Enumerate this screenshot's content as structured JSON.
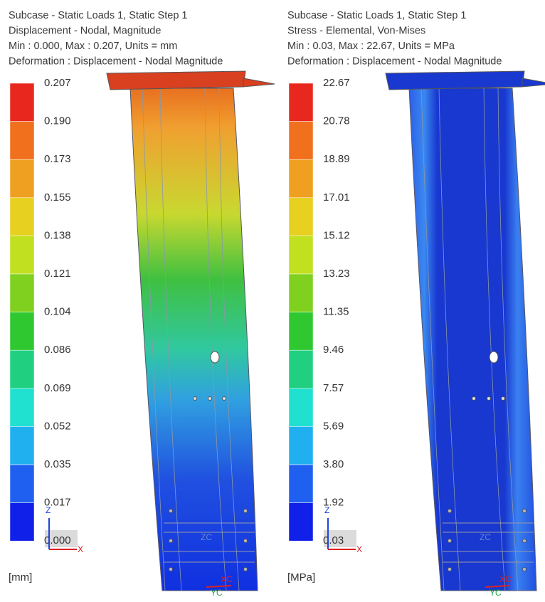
{
  "panels": [
    {
      "header": [
        "Subcase - Static Loads 1, Static Step 1",
        "Displacement - Nodal, Magnitude",
        "Min : 0.000, Max : 0.207, Units = mm",
        "Deformation : Displacement - Nodal Magnitude"
      ],
      "legend": [
        "0.207",
        "0.190",
        "0.173",
        "0.155",
        "0.138",
        "0.121",
        "0.104",
        "0.086",
        "0.069",
        "0.052",
        "0.035",
        "0.017",
        "0.000"
      ],
      "unit": "[mm]",
      "triad": {
        "z": "Z",
        "x": "X"
      },
      "csys": {
        "zc": "ZC",
        "xc": "XC",
        "yc": "YC"
      }
    },
    {
      "header": [
        "Subcase - Static Loads 1, Static Step 1",
        "Stress - Elemental, Von-Mises",
        "Min : 0.03, Max : 22.67, Units = MPa",
        "Deformation : Displacement - Nodal Magnitude"
      ],
      "legend": [
        "22.67",
        "20.78",
        "18.89",
        "17.01",
        "15.12",
        "13.23",
        "11.35",
        "9.46",
        "7.57",
        "5.69",
        "3.80",
        "1.92",
        "0.03"
      ],
      "unit": "[MPa]",
      "triad": {
        "z": "Z",
        "x": "X"
      },
      "csys": {
        "zc": "ZC",
        "xc": "XC",
        "yc": "YC"
      }
    }
  ]
}
